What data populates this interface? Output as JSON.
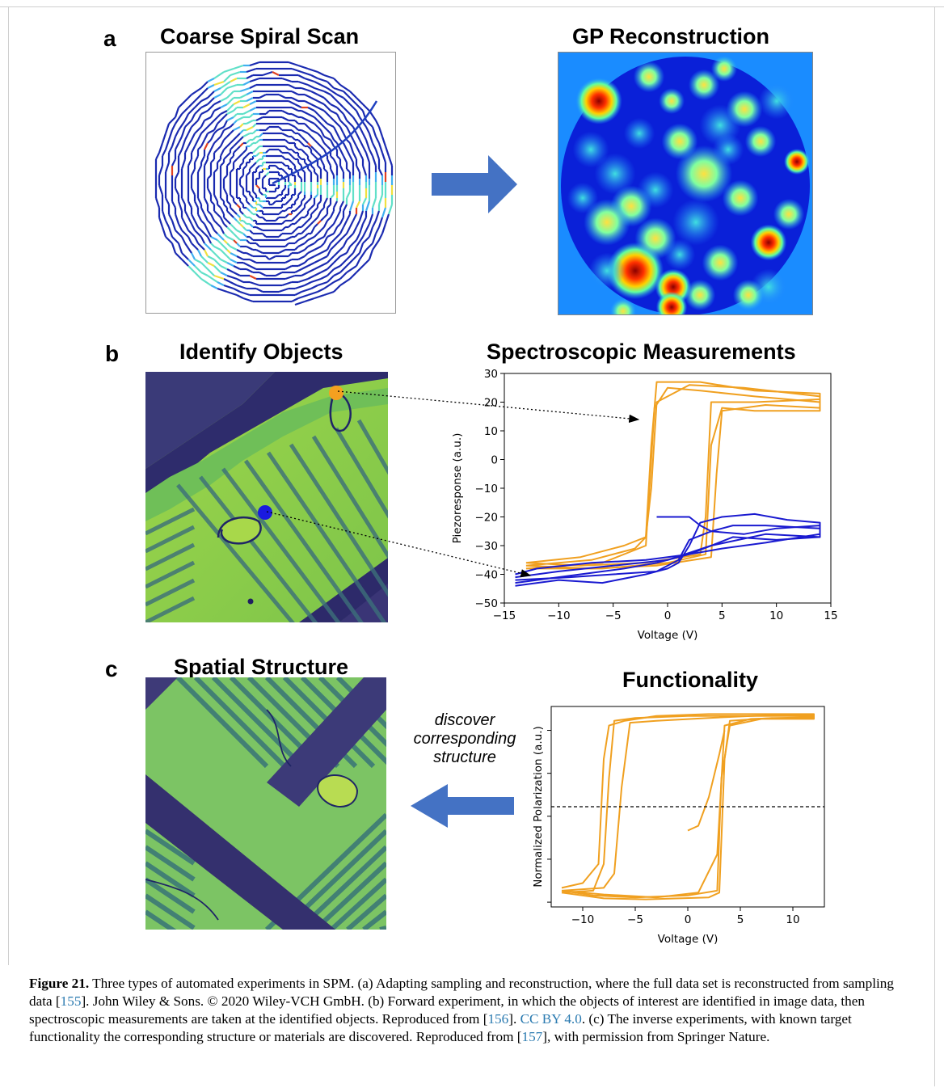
{
  "panels": {
    "a": {
      "letter": "a",
      "left_title": "Coarse Spiral Scan",
      "right_title": "GP Reconstruction"
    },
    "b": {
      "letter": "b",
      "left_title": "Identify Objects",
      "right_title": "Spectroscopic Measurements"
    },
    "c": {
      "letter": "c",
      "left_title": "Spatial Structure",
      "right_title": "Functionality",
      "arrow_note": [
        "discover",
        "corresponding",
        "structure"
      ]
    }
  },
  "colors": {
    "arrow": "#4472c4",
    "orange_series": "#f0a020",
    "blue_series": "#1a1ad0",
    "caption_link": "#2a7ab0"
  },
  "chart_data": [
    {
      "id": "spectroscopic",
      "type": "line",
      "xlabel": "Voltage (V)",
      "ylabel": "Piezoresponse (a.u.)",
      "xlim": [
        -15,
        15
      ],
      "ylim": [
        -50,
        30
      ],
      "xticks": [
        "−15",
        "−10",
        "−5",
        "0",
        "5",
        "10",
        "15"
      ],
      "yticks": [
        "30",
        "20",
        "10",
        "0",
        "−10",
        "−20",
        "−30",
        "−40",
        "−50"
      ],
      "series": [
        {
          "color": "orange",
          "loops": [
            {
              "x": [
                -13,
                -8,
                -4,
                -2,
                -1.5,
                -1,
                2,
                7,
                14,
                14,
                8,
                4,
                3.5,
                3,
                -2,
                -8,
                -13
              ],
              "y": [
                -36,
                -34,
                -30,
                -27,
                -10,
                20,
                26,
                25,
                22,
                21,
                20,
                20,
                -20,
                -33,
                -36,
                -37,
                -36
              ]
            },
            {
              "x": [
                -13,
                -7,
                -3,
                -2,
                -1.5,
                -1,
                3,
                8,
                14,
                14,
                9,
                5,
                4.5,
                4,
                -1,
                -7,
                -13
              ],
              "y": [
                -37,
                -35,
                -31,
                -27,
                5,
                27,
                27,
                24,
                23,
                18,
                19,
                17,
                -5,
                -34,
                -37,
                -38,
                -37
              ]
            },
            {
              "x": [
                -13,
                -6,
                -2,
                -1.2,
                0,
                3,
                8,
                14,
                14,
                8,
                5,
                4,
                3.5,
                0,
                -6,
                -13
              ],
              "y": [
                -38,
                -36,
                -30,
                18,
                25,
                24,
                22,
                20,
                17,
                17,
                18,
                5,
                -33,
                -36,
                -38,
                -38
              ]
            }
          ]
        },
        {
          "color": "blue",
          "loops": [
            {
              "x": [
                -14,
                -10,
                -6,
                -2,
                0,
                1,
                2,
                3,
                5,
                8,
                11,
                14,
                14,
                10,
                6,
                2,
                -1,
                -4,
                -8,
                -14
              ],
              "y": [
                -44,
                -42,
                -43,
                -40,
                -38,
                -36,
                -30,
                -22,
                -20,
                -19,
                -21,
                -22,
                -27,
                -28,
                -27,
                -33,
                -36,
                -38,
                -40,
                -43
              ]
            },
            {
              "x": [
                -14,
                -9,
                -5,
                -1,
                1,
                2,
                4,
                6,
                9,
                14,
                14,
                9,
                4,
                0,
                -5,
                -10,
                -14
              ],
              "y": [
                -42,
                -41,
                -40,
                -39,
                -35,
                -28,
                -25,
                -23,
                -23,
                -24,
                -27,
                -26,
                -30,
                -35,
                -37,
                -39,
                -41
              ]
            },
            {
              "x": [
                -1,
                2,
                3,
                4,
                7,
                10,
                14,
                14,
                9,
                5,
                2,
                -2,
                -7,
                -12,
                -14
              ],
              "y": [
                -20,
                -20,
                -23,
                -25,
                -26,
                -24,
                -23,
                -26,
                -29,
                -31,
                -33,
                -35,
                -36,
                -38,
                -40
              ]
            }
          ]
        }
      ]
    },
    {
      "id": "functionality",
      "type": "line",
      "xlabel": "Voltage (V)",
      "ylabel": "Normalized Polarization (a.u.)",
      "xlim": [
        -13,
        13
      ],
      "xticks": [
        "−10",
        "−5",
        "0",
        "5",
        "10"
      ],
      "dashed_hline": 0,
      "series": [
        {
          "color": "orange",
          "loops": [
            {
              "x": [
                -12,
                -10,
                -8.5,
                -8,
                -7.5,
                -6,
                -3,
                2,
                8,
                12,
                12,
                8,
                4,
                3.5,
                3,
                2,
                -4,
                -8,
                -12
              ],
              "y": [
                -0.85,
                -0.8,
                -0.6,
                0.5,
                0.85,
                0.9,
                0.95,
                0.97,
                0.97,
                0.97,
                0.93,
                0.93,
                0.9,
                0.5,
                -0.9,
                -0.95,
                -0.97,
                -0.96,
                -0.9
              ]
            },
            {
              "x": [
                -12,
                -9,
                -8,
                -7.5,
                -7,
                -5,
                0,
                6,
                12,
                12,
                7,
                4,
                3.2,
                2.8,
                0,
                -5,
                -9,
                -12
              ],
              "y": [
                -0.9,
                -0.88,
                -0.6,
                0.3,
                0.9,
                0.93,
                0.95,
                0.95,
                0.95,
                0.92,
                0.92,
                0.85,
                0.3,
                -0.88,
                -0.93,
                -0.95,
                -0.93,
                -0.88
              ]
            },
            {
              "x": [
                -12,
                -8,
                -7,
                -6.3,
                -5.5,
                -3,
                2,
                8,
                12,
                12,
                6,
                3.5,
                2.8,
                1,
                -3,
                -8,
                -12
              ],
              "y": [
                -0.88,
                -0.85,
                -0.7,
                0.2,
                0.88,
                0.9,
                0.93,
                0.96,
                0.96,
                0.94,
                0.92,
                0.85,
                -0.5,
                -0.9,
                -0.95,
                -0.92,
                -0.88
              ]
            },
            {
              "x": [
                0,
                1,
                2,
                3,
                3.5
              ],
              "y": [
                -0.25,
                -0.2,
                0.1,
                0.55,
                0.8
              ]
            }
          ]
        }
      ]
    }
  ],
  "caption": {
    "label": "Figure 21.",
    "parts": [
      {
        "t": " Three types of automated experiments in SPM. (a) Adapting sampling and reconstruction, where the full data set is reconstructed from sampling data ["
      },
      {
        "t": "155",
        "ref": true
      },
      {
        "t": "]. John Wiley & Sons. © 2020 Wiley-VCH GmbH. (b) Forward experiment, in which the objects of interest are identified in image data, then spectroscopic measurements are taken at the identified objects. Reproduced from ["
      },
      {
        "t": "156",
        "ref": true
      },
      {
        "t": "]. "
      },
      {
        "t": "CC BY 4.0",
        "ref": true
      },
      {
        "t": ". (c) The inverse experiments, with known target functionality the corresponding structure or materials are discovered. Reproduced from ["
      },
      {
        "t": "157",
        "ref": true
      },
      {
        "t": "], with permission from Springer Nature."
      }
    ]
  }
}
